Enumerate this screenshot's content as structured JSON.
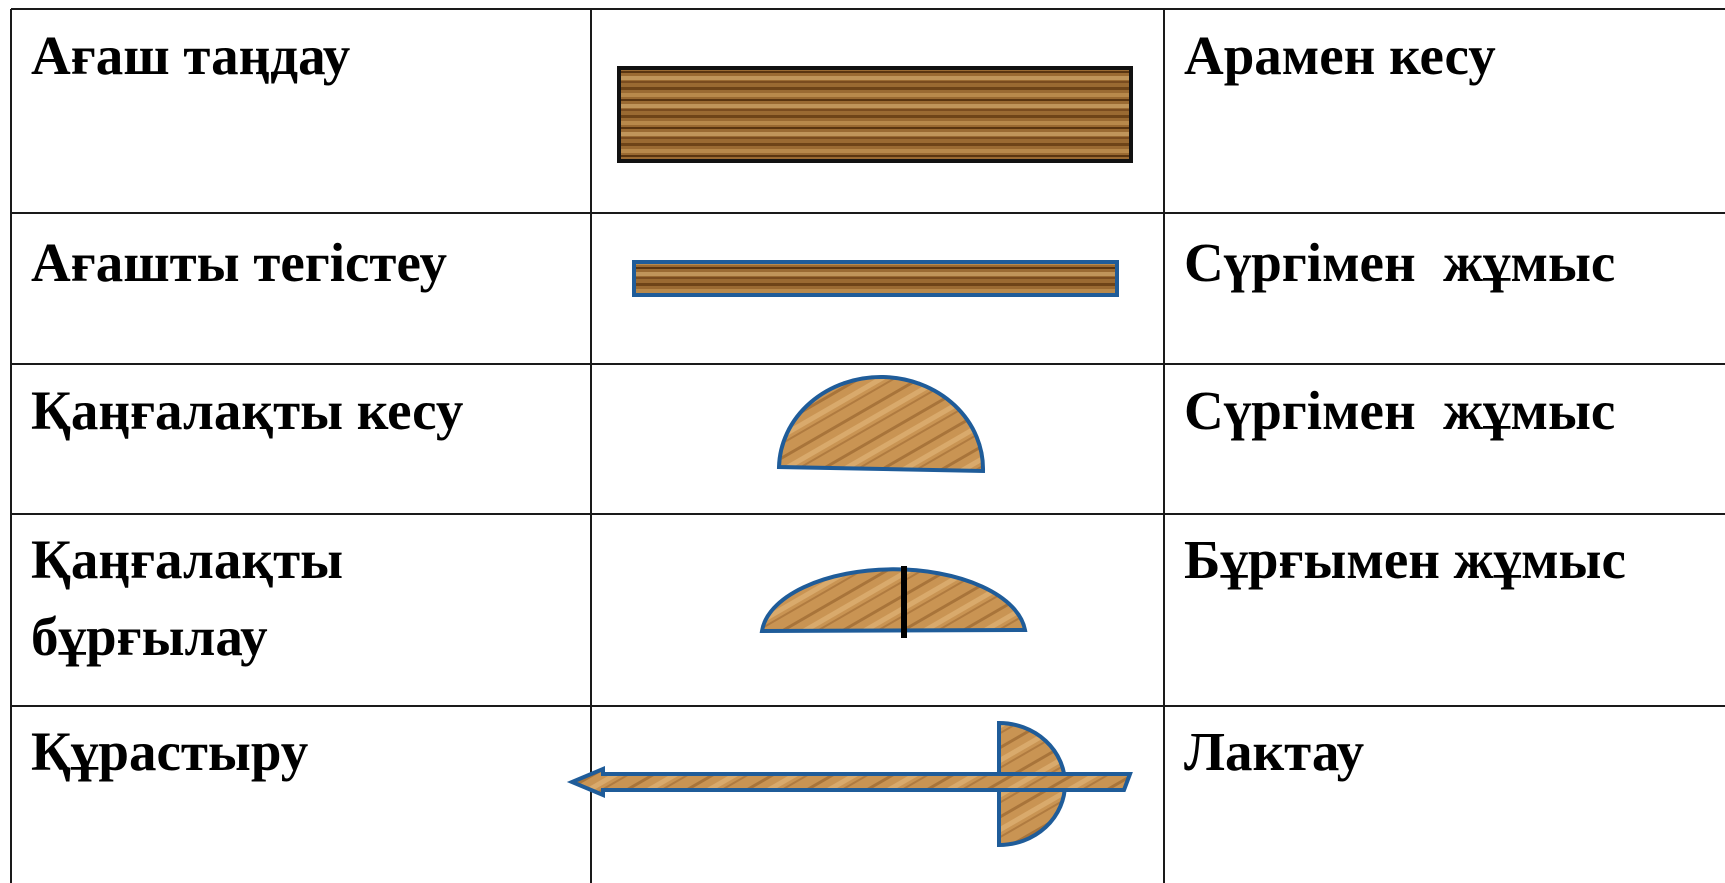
{
  "table": {
    "rows": [
      [
        "Ағаш таңдау",
        "Арамен кесу"
      ],
      [
        "Ағашты тегістеу",
        "Сүргімен  жұмыс"
      ],
      [
        "Қаңғалақты кесу",
        "Сүргімен  жұмыс"
      ],
      [
        "Қаңғалақты бұрғылау",
        "Бұрғымен жұмыс"
      ],
      [
        "Құрастыру",
        "Лактау"
      ]
    ]
  }
}
